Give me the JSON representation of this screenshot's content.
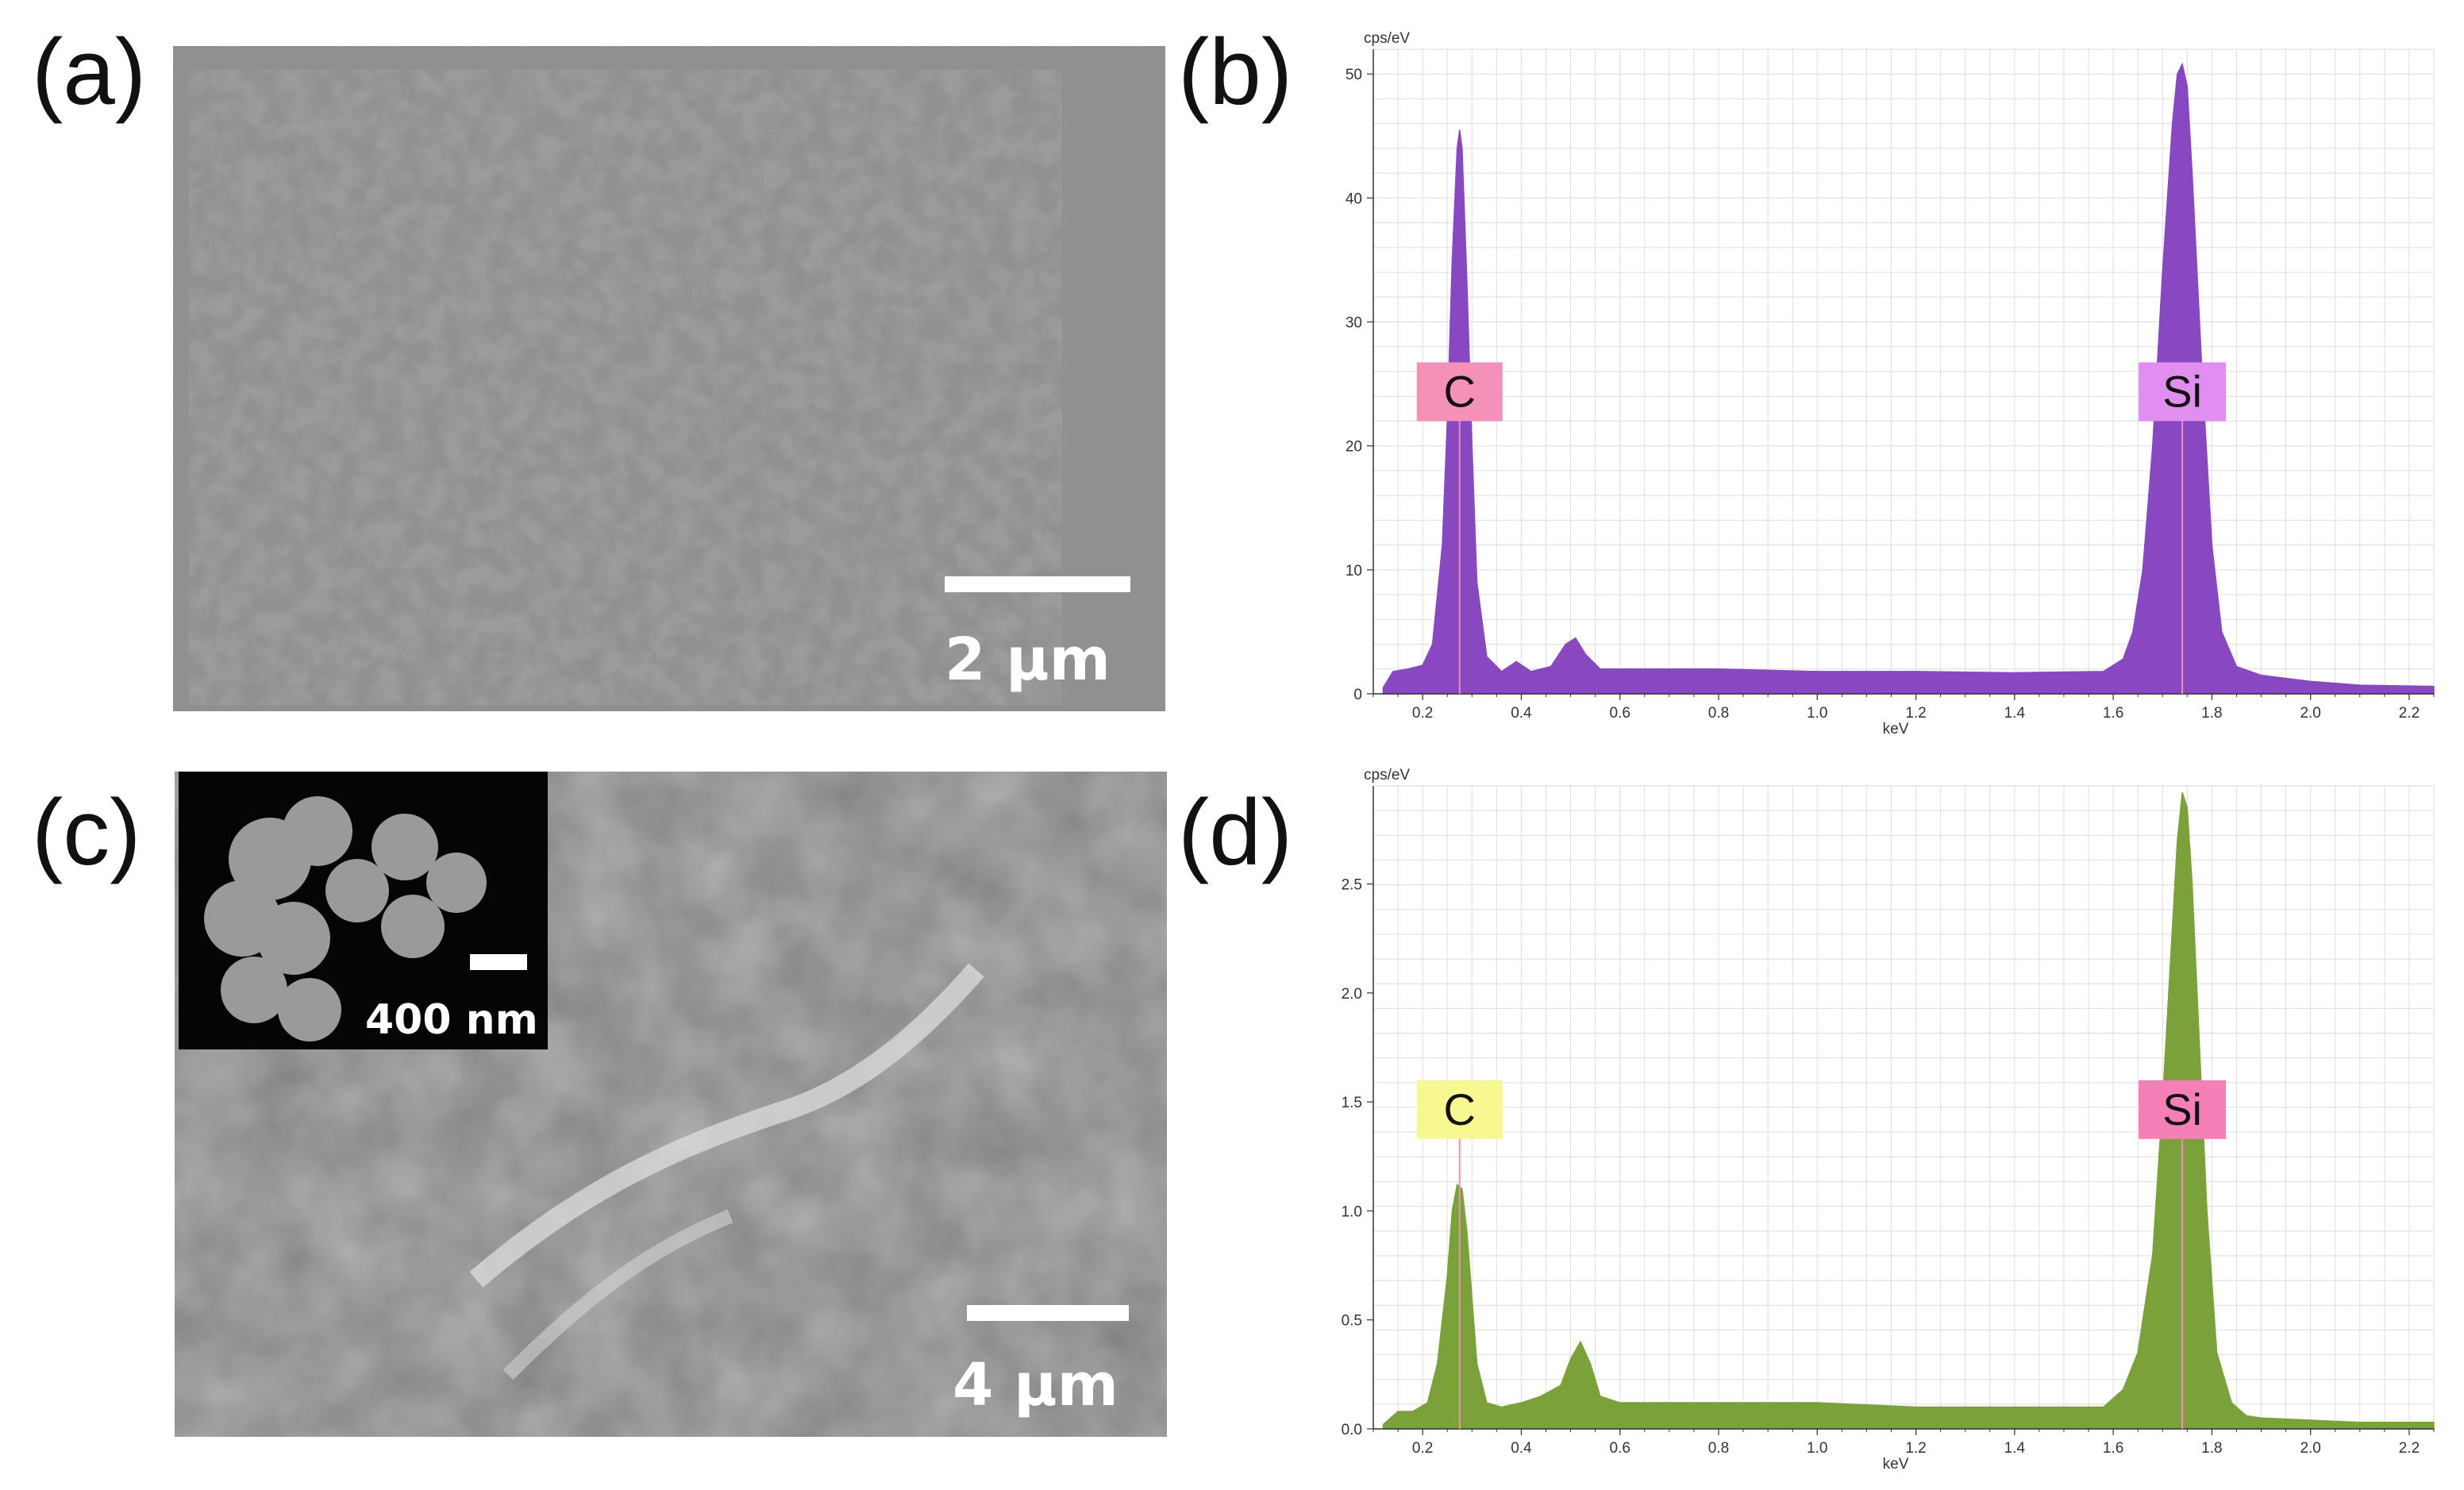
{
  "panels": {
    "a": {
      "label": "(a)",
      "scale_bar": "2 μm"
    },
    "b": {
      "label": "(b)"
    },
    "c": {
      "label": "(c)",
      "scale_bar": "4 μm",
      "inset_scale_bar": "400 nm"
    },
    "d": {
      "label": "(d)"
    }
  },
  "chart_data": [
    {
      "type": "area",
      "panel": "(b)",
      "xlabel": "keV",
      "ylabel": "cps/eV",
      "xlim": [
        0.1,
        2.25
      ],
      "ylim": [
        0,
        52
      ],
      "xticks": [
        0.2,
        0.4,
        0.6,
        0.8,
        1.0,
        1.2,
        1.4,
        1.6,
        1.8,
        2.0,
        2.2
      ],
      "xtick_labels": [
        "0.2",
        "0.4",
        "0.6",
        "0.8",
        "1.0",
        "1.2",
        "1.4",
        "1.6",
        "1.8",
        "2.0",
        "2.2"
      ],
      "yticks": [
        0,
        10,
        20,
        30,
        40,
        50
      ],
      "ytick_labels": [
        "0",
        "10",
        "20",
        "30",
        "40",
        "50"
      ],
      "color": "#8848c0",
      "grid": true,
      "x": [
        0.12,
        0.14,
        0.17,
        0.2,
        0.22,
        0.24,
        0.25,
        0.26,
        0.27,
        0.275,
        0.28,
        0.29,
        0.3,
        0.31,
        0.33,
        0.36,
        0.39,
        0.42,
        0.46,
        0.49,
        0.51,
        0.53,
        0.56,
        0.6,
        0.8,
        1.0,
        1.2,
        1.4,
        1.58,
        1.62,
        1.64,
        1.66,
        1.68,
        1.7,
        1.72,
        1.73,
        1.74,
        1.75,
        1.76,
        1.78,
        1.8,
        1.82,
        1.85,
        1.9,
        2.0,
        2.1,
        2.25
      ],
      "values": [
        0.5,
        1.8,
        2.0,
        2.3,
        4.0,
        12.0,
        22.0,
        35.0,
        44.0,
        45.5,
        44.0,
        33.0,
        20.0,
        9.0,
        3.0,
        1.8,
        2.6,
        1.8,
        2.2,
        4.0,
        4.5,
        3.2,
        2.0,
        2.0,
        2.0,
        1.8,
        1.8,
        1.7,
        1.8,
        2.8,
        5.0,
        10.0,
        20.0,
        34.0,
        46.0,
        50.0,
        50.8,
        49.0,
        42.0,
        26.0,
        12.0,
        5.0,
        2.2,
        1.5,
        1.0,
        0.7,
        0.6
      ],
      "annotations": [
        {
          "text": "C",
          "x": 0.275,
          "y": 22,
          "color": "#f590b8"
        },
        {
          "text": "Si",
          "x": 1.74,
          "y": 22,
          "color": "#e08ef0"
        }
      ]
    },
    {
      "type": "area",
      "panel": "(d)",
      "xlabel": "keV",
      "ylabel": "cps/eV",
      "xlim": [
        0.1,
        2.25
      ],
      "ylim": [
        0,
        2.95
      ],
      "xticks": [
        0.2,
        0.4,
        0.6,
        0.8,
        1.0,
        1.2,
        1.4,
        1.6,
        1.8,
        2.0,
        2.2
      ],
      "xtick_labels": [
        "0.2",
        "0.4",
        "0.6",
        "0.8",
        "1.0",
        "1.2",
        "1.4",
        "1.6",
        "1.8",
        "2.0",
        "2.2"
      ],
      "yticks": [
        0,
        0.5,
        1.0,
        1.5,
        2.0,
        2.5
      ],
      "ytick_labels": [
        "0.0",
        "0.5",
        "1.0",
        "1.5",
        "2.0",
        "2.5"
      ],
      "color": "#7ba23a",
      "grid": true,
      "x": [
        0.12,
        0.15,
        0.18,
        0.21,
        0.23,
        0.25,
        0.26,
        0.27,
        0.28,
        0.29,
        0.3,
        0.31,
        0.33,
        0.36,
        0.4,
        0.44,
        0.48,
        0.5,
        0.52,
        0.54,
        0.56,
        0.6,
        0.8,
        1.0,
        1.2,
        1.4,
        1.58,
        1.62,
        1.65,
        1.68,
        1.7,
        1.72,
        1.73,
        1.74,
        1.75,
        1.76,
        1.77,
        1.79,
        1.81,
        1.84,
        1.87,
        1.9,
        2.0,
        2.1,
        2.25
      ],
      "values": [
        0.02,
        0.08,
        0.08,
        0.12,
        0.3,
        0.7,
        1.0,
        1.12,
        1.1,
        0.9,
        0.6,
        0.3,
        0.12,
        0.1,
        0.12,
        0.15,
        0.2,
        0.32,
        0.4,
        0.3,
        0.15,
        0.12,
        0.12,
        0.12,
        0.1,
        0.1,
        0.1,
        0.18,
        0.35,
        0.8,
        1.5,
        2.3,
        2.7,
        2.92,
        2.85,
        2.5,
        2.0,
        1.0,
        0.35,
        0.12,
        0.06,
        0.05,
        0.04,
        0.03,
        0.03
      ],
      "annotations": [
        {
          "text": "C",
          "x": 0.275,
          "y": 1.33,
          "color": "#f8f890"
        },
        {
          "text": "Si",
          "x": 1.74,
          "y": 1.33,
          "color": "#f57fb7"
        }
      ]
    }
  ]
}
